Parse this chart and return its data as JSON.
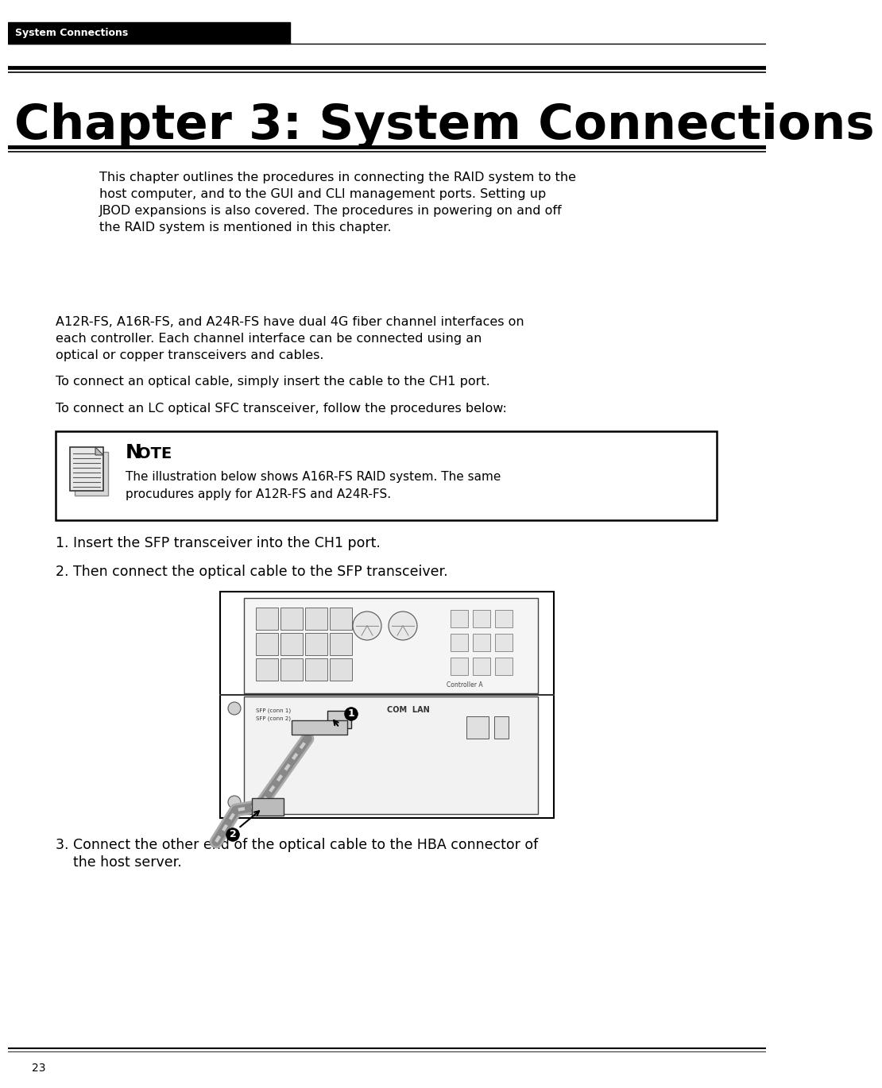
{
  "page_bg": "#ffffff",
  "header_bg": "#000000",
  "header_text": "System Connections",
  "header_text_color": "#ffffff",
  "chapter_title": "Chapter 3: System Connections",
  "intro_text_lines": [
    "This chapter outlines the procedures in connecting the RAID system to the",
    "host computer, and to the GUI and CLI management ports. Setting up",
    "JBOD expansions is also covered. The procedures in powering on and off",
    "the RAID system is mentioned in this chapter."
  ],
  "section_text_lines": [
    "A12R-FS, A16R-FS, and A24R-FS have dual 4G fiber channel interfaces on",
    "each controller. Each channel interface can be connected using an",
    "optical or copper transceivers and cables."
  ],
  "optical_text": "To connect an optical cable, simply insert the cable to the CH1 port.",
  "lc_text": "To connect an LC optical SFC transceiver, follow the procedures below:",
  "note_body_lines": [
    "The illustration below shows A16R-FS RAID system. The same",
    "procudures apply for A12R-FS and A24R-FS."
  ],
  "step1": "1. Insert the SFP transceiver into the CH1 port.",
  "step2": "2. Then connect the optical cable to the SFP transceiver.",
  "step3_lines": [
    "3. Connect the other end of the optical cable to the HBA connector of",
    "    the host server."
  ],
  "footer_text": "23",
  "line_color": "#000000",
  "body_font_size": 11.5,
  "note_body_size": 11.0,
  "step_font_size": 12.5,
  "chapter_font_size": 44,
  "header_font_size": 9
}
